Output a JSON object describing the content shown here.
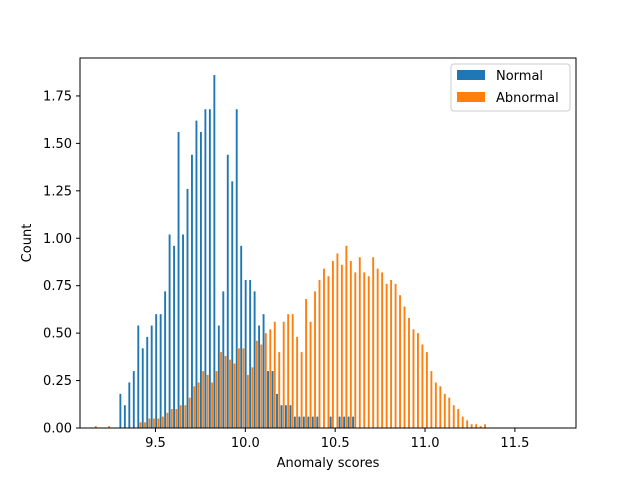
{
  "chart_data": {
    "type": "bar",
    "title": "",
    "xlabel": "Anomaly scores",
    "ylabel": "Count",
    "xlim": [
      9.08,
      11.84
    ],
    "ylim": [
      0,
      1.95
    ],
    "xticks": [
      9.5,
      10.0,
      10.5,
      11.0,
      11.5
    ],
    "xtick_labels": [
      "9.5",
      "10.0",
      "10.5",
      "11.0",
      "11.5"
    ],
    "yticks": [
      0.0,
      0.25,
      0.5,
      0.75,
      1.0,
      1.25,
      1.5,
      1.75
    ],
    "ytick_labels": [
      "0.00",
      "0.25",
      "0.50",
      "0.75",
      "1.00",
      "1.25",
      "1.50",
      "1.75"
    ],
    "grid": false,
    "legend_position": "top-right",
    "bin_start": 9.15,
    "bin_width": 0.0249,
    "series": [
      {
        "name": "Normal",
        "color": "#1f77b4",
        "values": [
          0,
          0,
          0,
          0,
          0,
          0,
          0.18,
          0.12,
          0.24,
          0.3,
          0.54,
          0.42,
          0.48,
          0.54,
          0.6,
          0.6,
          0.72,
          1.02,
          0.96,
          1.56,
          1.02,
          1.26,
          1.44,
          1.62,
          1.56,
          1.68,
          1.68,
          1.86,
          0.54,
          0.72,
          1.44,
          1.3,
          1.68,
          0.96,
          0.78,
          0.78,
          0.72,
          0.54,
          0.6,
          0.3,
          0.3,
          0.18,
          0.12,
          0.12,
          0.12,
          0.06,
          0.06,
          0.06,
          0.06,
          0.06,
          0.06,
          0,
          0,
          0.06,
          0,
          0.06,
          0.06,
          0.06,
          0.06,
          0,
          0,
          0,
          0,
          0,
          0,
          0,
          0,
          0,
          0,
          0,
          0,
          0,
          0,
          0,
          0,
          0,
          0,
          0,
          0,
          0,
          0,
          0,
          0,
          0,
          0,
          0,
          0,
          0,
          0,
          0,
          0,
          0,
          0,
          0,
          0,
          0,
          0,
          0,
          0,
          0,
          0,
          0,
          0,
          0,
          0,
          0,
          0,
          0,
          0,
          0,
          0
        ]
      },
      {
        "name": "Abnormal",
        "color": "#ff7f0e",
        "values": [
          0.01,
          0,
          0,
          0.01,
          0,
          0,
          0,
          0,
          0,
          0,
          0.03,
          0.03,
          0.05,
          0.05,
          0.05,
          0.06,
          0.08,
          0.1,
          0.1,
          0.12,
          0.12,
          0.16,
          0.22,
          0.24,
          0.3,
          0.28,
          0.24,
          0.3,
          0.4,
          0.38,
          0.36,
          0.34,
          0.42,
          0.42,
          0.28,
          0.32,
          0.46,
          0.44,
          0.5,
          0.52,
          0.56,
          0.4,
          0.56,
          0.6,
          0.6,
          0.48,
          0.4,
          0.68,
          0.56,
          0.72,
          0.78,
          0.84,
          0.8,
          0.88,
          0.92,
          0.86,
          0.96,
          0.88,
          0.82,
          0.9,
          0.82,
          0.8,
          0.9,
          0.84,
          0.82,
          0.76,
          0.78,
          0.76,
          0.7,
          0.64,
          0.58,
          0.52,
          0.5,
          0.44,
          0.4,
          0.3,
          0.24,
          0.22,
          0.18,
          0.16,
          0.12,
          0.1,
          0.06,
          0.04,
          0.02,
          0.02,
          0.01,
          0.02,
          0,
          0,
          0,
          0,
          0,
          0,
          0,
          0,
          0,
          0,
          0,
          0,
          0,
          0,
          0,
          0,
          0,
          0,
          0,
          0,
          0,
          0,
          0
        ]
      }
    ]
  }
}
